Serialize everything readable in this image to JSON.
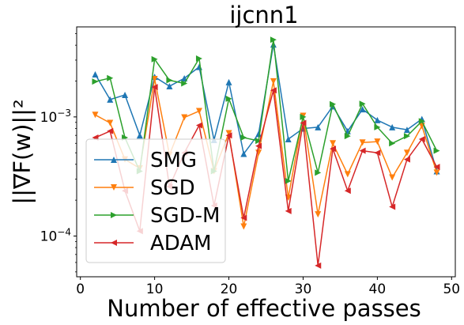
{
  "chart_data": {
    "type": "line",
    "title": "ijcnn1",
    "xlabel": "Number of effective passes",
    "ylabel": "||∇F(w)||²",
    "xlim": [
      -0.5,
      50.5
    ],
    "ylim": [
      4.55e-05,
      0.0057
    ],
    "y_scale": "log",
    "x_ticks": [
      0,
      10,
      20,
      30,
      40,
      50
    ],
    "y_ticks": [
      {
        "value": 0.0001,
        "label": "10−4",
        "base": "10",
        "exp": "−4"
      },
      {
        "value": 0.001,
        "label": "10−3",
        "base": "10",
        "exp": "−3"
      }
    ],
    "legend_position": "lower left",
    "x": [
      2,
      4,
      6,
      8,
      10,
      12,
      14,
      16,
      18,
      20,
      22,
      24,
      26,
      28,
      30,
      32,
      34,
      36,
      38,
      40,
      42,
      44,
      46,
      48
    ],
    "series": [
      {
        "name": "SMG",
        "color": "#1f77b4",
        "marker": "triangle-up",
        "values": [
          0.00228,
          0.0014,
          0.00153,
          0.0007,
          0.00217,
          0.00181,
          0.00211,
          0.00263,
          0.00064,
          0.00196,
          0.00049,
          0.00072,
          0.00406,
          0.00065,
          0.0008,
          0.00082,
          0.00123,
          0.00076,
          0.00116,
          0.00094,
          0.00082,
          0.00078,
          0.00096,
          0.00035
        ]
      },
      {
        "name": "SGD",
        "color": "#ff7f0e",
        "marker": "triangle-down",
        "values": [
          0.00104,
          0.00089,
          0.00044,
          0.00037,
          0.00208,
          0.00048,
          0.00099,
          0.00112,
          0.00035,
          0.00073,
          0.00012,
          0.0005,
          0.00199,
          0.00021,
          0.00102,
          0.000152,
          0.0006,
          0.00033,
          0.00061,
          0.00062,
          0.00031,
          0.0005,
          0.00084,
          0.00034
        ]
      },
      {
        "name": "SGD-M",
        "color": "#2ca02c",
        "marker": "triangle-right",
        "values": [
          0.00198,
          0.00212,
          0.00067,
          0.00035,
          0.00305,
          0.00203,
          0.00191,
          0.00309,
          0.00035,
          0.00142,
          0.00067,
          0.00063,
          0.00445,
          0.00029,
          0.001,
          0.00034,
          0.00128,
          0.00069,
          0.00129,
          0.00082,
          0.0006,
          0.00069,
          0.00092,
          0.00052
        ]
      },
      {
        "name": "ADAM",
        "color": "#d62728",
        "marker": "triangle-left",
        "values": [
          0.00067,
          0.00076,
          0.00024,
          0.00011,
          0.00178,
          0.00026,
          0.0005,
          0.00085,
          0.00018,
          0.0007,
          0.000142,
          0.00057,
          0.00167,
          0.000162,
          0.00089,
          5.65e-05,
          0.00054,
          0.00024,
          0.00052,
          0.0005,
          0.000176,
          0.00044,
          0.00065,
          0.00038
        ]
      }
    ]
  }
}
